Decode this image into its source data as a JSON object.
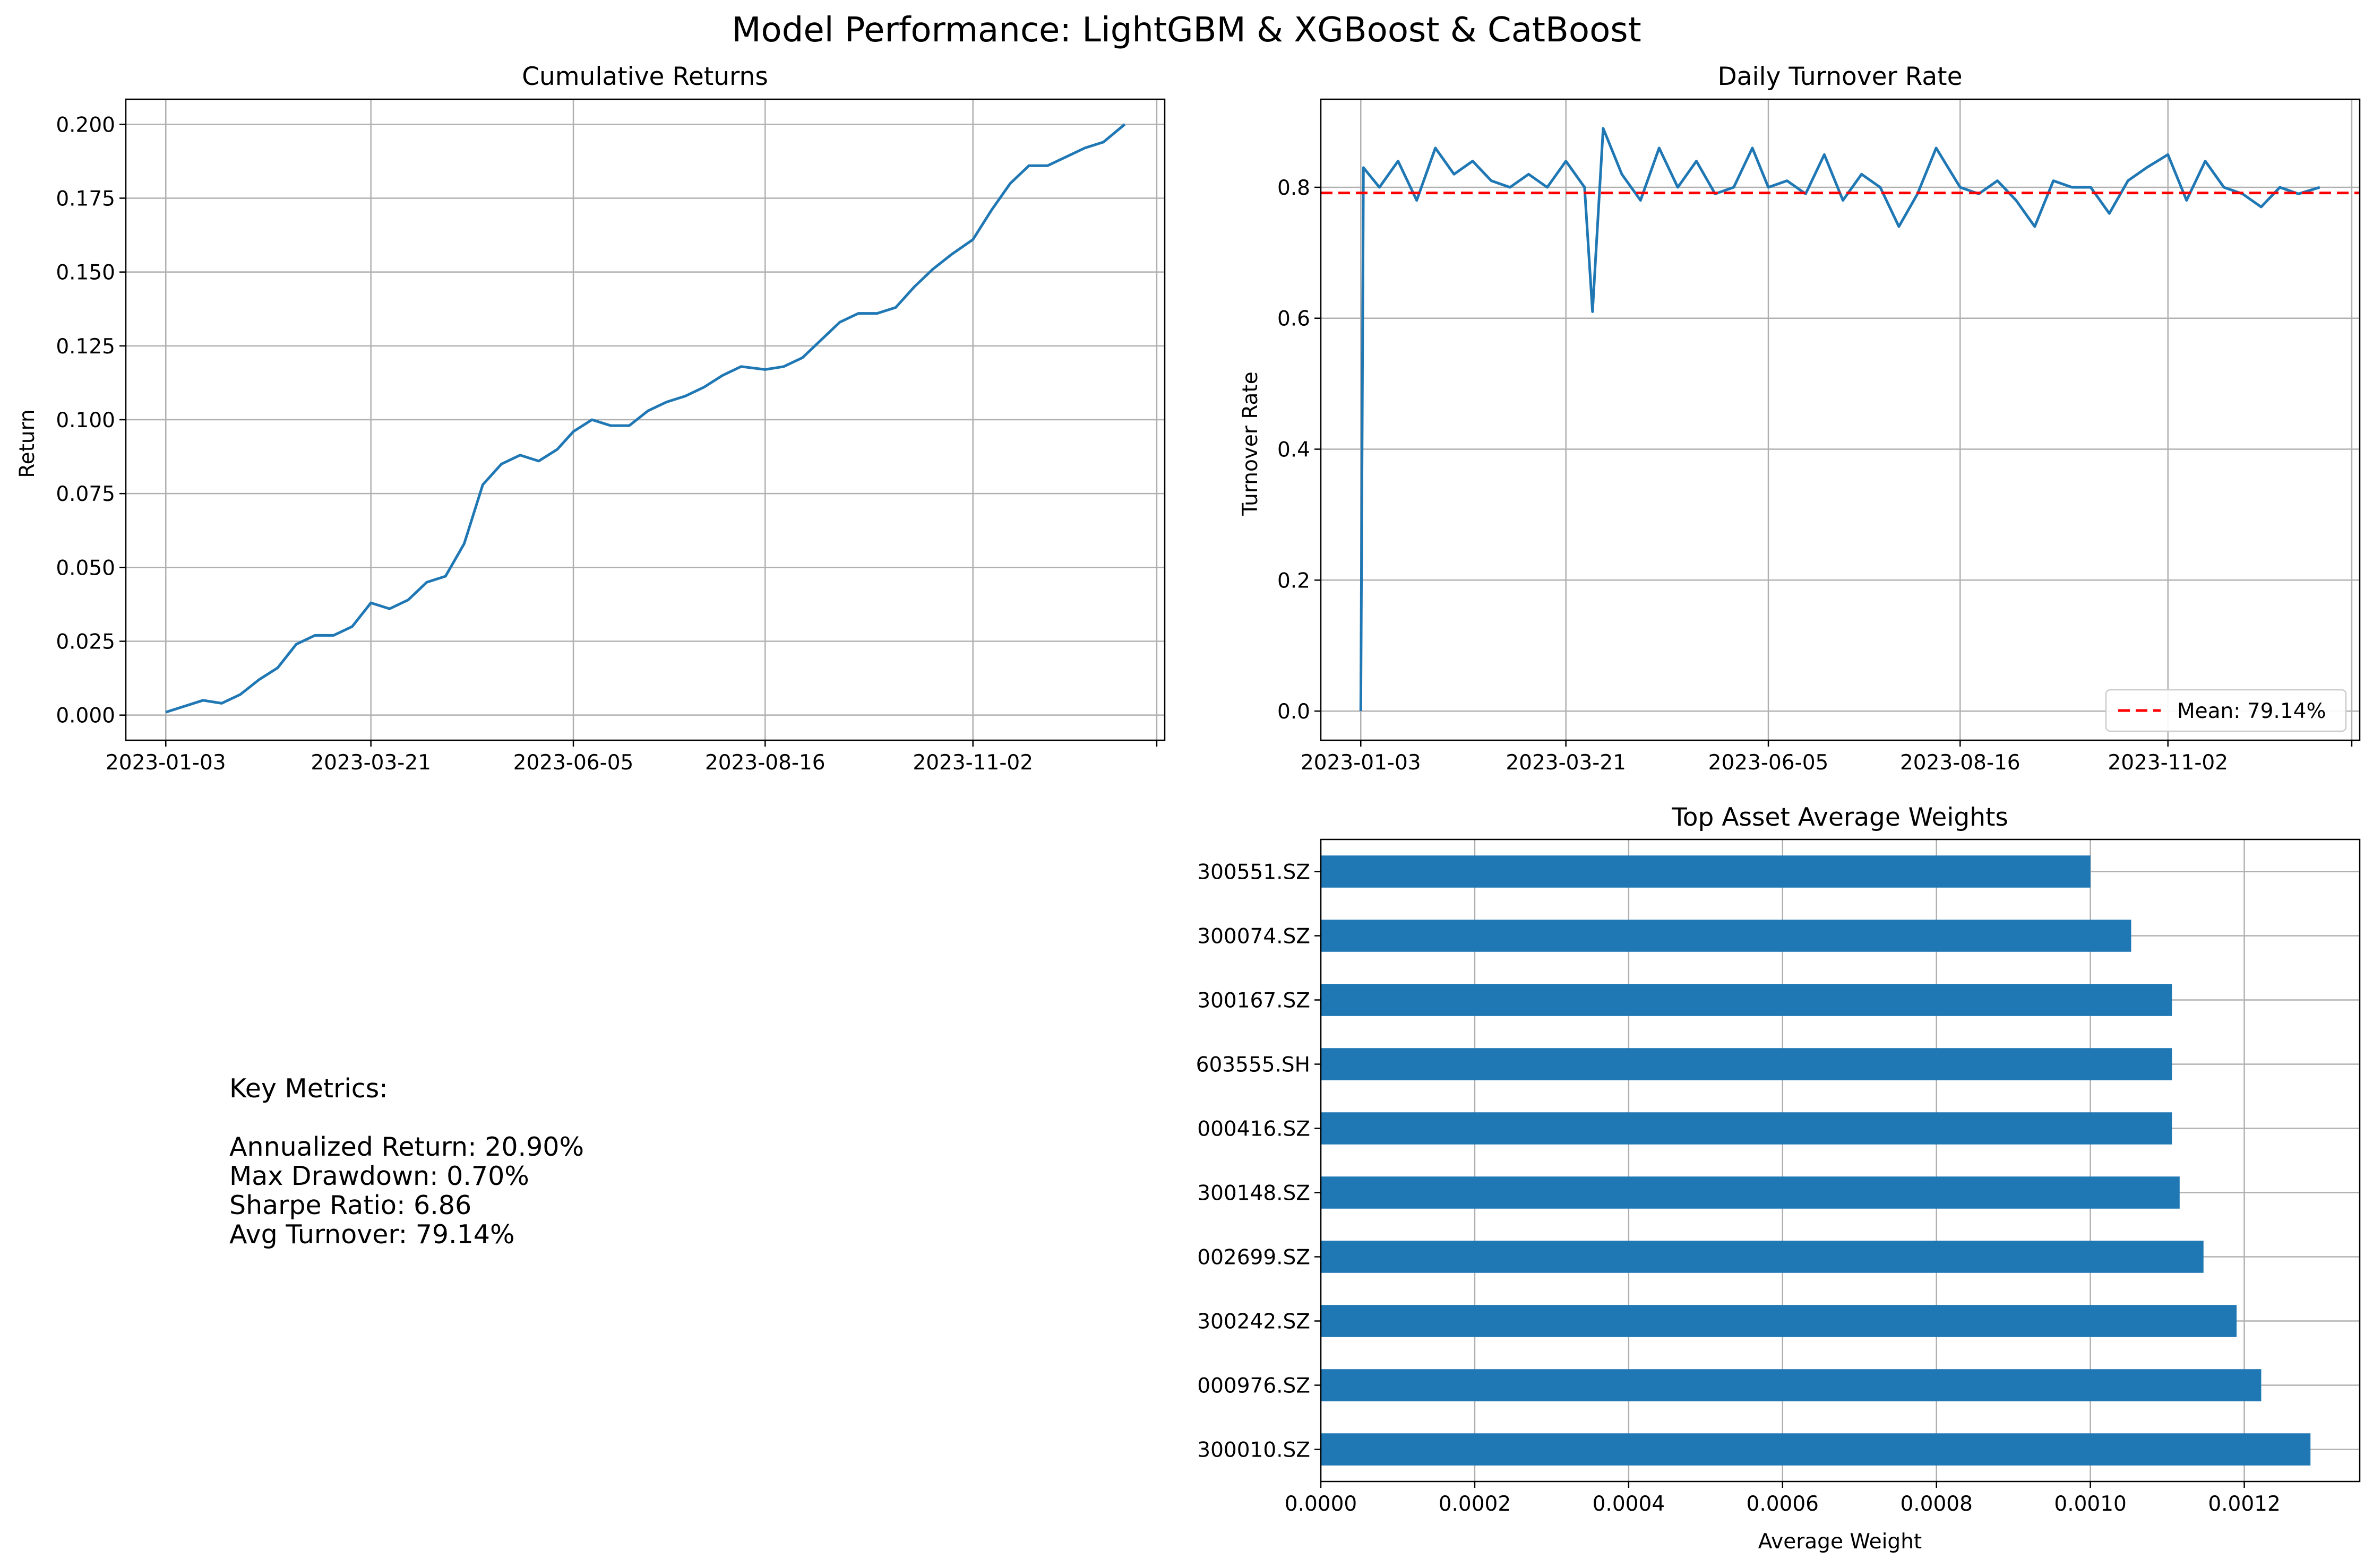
{
  "figure": {
    "suptitle": "Model Performance: LightGBM & XGBoost & CatBoost"
  },
  "metrics": {
    "heading": "Key Metrics:",
    "lines": [
      "Annualized Return: 20.90%",
      "Max Drawdown: 0.70%",
      "Sharpe Ratio: 6.86",
      "Avg Turnover: 79.14%"
    ]
  },
  "chart_data": [
    {
      "type": "line",
      "title": "Cumulative Returns",
      "xlabel": "",
      "ylabel": "Return",
      "x_tick_labels": [
        "2023-01-03",
        "2023-03-21",
        "2023-06-05",
        "2023-08-16",
        "2023-11-02"
      ],
      "y_ticks": [
        0.0,
        0.025,
        0.05,
        0.075,
        0.1,
        0.125,
        0.15,
        0.175,
        0.2
      ],
      "y_tick_labels": [
        "0.000",
        "0.025",
        "0.050",
        "0.075",
        "0.100",
        "0.125",
        "0.150",
        "0.175",
        "0.200"
      ],
      "ylim": [
        -0.0085,
        0.2085
      ],
      "xlim": [
        "2022-12-19",
        "2024-01-13"
      ],
      "grid": true,
      "color": "#1f77b4",
      "series": [
        {
          "x": [
            "2023-01-03",
            "2023-01-10",
            "2023-01-17",
            "2023-01-24",
            "2023-01-31",
            "2023-02-07",
            "2023-02-14",
            "2023-02-21",
            "2023-02-28",
            "2023-03-07",
            "2023-03-14",
            "2023-03-21",
            "2023-03-28",
            "2023-04-04",
            "2023-04-11",
            "2023-04-18",
            "2023-04-25",
            "2023-05-02",
            "2023-05-09",
            "2023-05-16",
            "2023-05-23",
            "2023-05-30",
            "2023-06-05",
            "2023-06-12",
            "2023-06-19",
            "2023-06-26",
            "2023-07-03",
            "2023-07-10",
            "2023-07-17",
            "2023-07-24",
            "2023-07-31",
            "2023-08-07",
            "2023-08-16",
            "2023-08-23",
            "2023-08-30",
            "2023-09-06",
            "2023-09-13",
            "2023-09-20",
            "2023-09-27",
            "2023-10-04",
            "2023-10-11",
            "2023-10-18",
            "2023-10-25",
            "2023-11-02",
            "2023-11-09",
            "2023-11-16",
            "2023-11-23",
            "2023-11-30",
            "2023-12-07",
            "2023-12-14",
            "2023-12-21",
            "2023-12-29"
          ],
          "y": [
            0.001,
            0.003,
            0.005,
            0.004,
            0.007,
            0.012,
            0.016,
            0.024,
            0.027,
            0.027,
            0.03,
            0.038,
            0.036,
            0.039,
            0.045,
            0.047,
            0.058,
            0.078,
            0.085,
            0.088,
            0.086,
            0.09,
            0.096,
            0.1,
            0.098,
            0.098,
            0.103,
            0.106,
            0.108,
            0.111,
            0.115,
            0.118,
            0.117,
            0.118,
            0.121,
            0.127,
            0.133,
            0.136,
            0.136,
            0.138,
            0.145,
            0.151,
            0.156,
            0.161,
            0.171,
            0.18,
            0.186,
            0.186,
            0.189,
            0.192,
            0.194,
            0.2
          ]
        }
      ]
    },
    {
      "type": "line",
      "title": "Daily Turnover Rate",
      "xlabel": "",
      "ylabel": "Turnover Rate",
      "x_tick_labels": [
        "2023-01-03",
        "2023-03-21",
        "2023-06-05",
        "2023-08-16",
        "2023-11-02"
      ],
      "y_ticks": [
        0.0,
        0.2,
        0.4,
        0.6,
        0.8
      ],
      "y_tick_labels": [
        "0.0",
        "0.2",
        "0.4",
        "0.6",
        "0.8"
      ],
      "ylim": [
        -0.0445,
        0.9345
      ],
      "xlim": [
        "2022-12-19",
        "2024-01-13"
      ],
      "grid": true,
      "color": "#1f77b4",
      "mean_line": {
        "value": 0.7914,
        "label": "Mean: 79.14%",
        "color": "#ff0000",
        "style": "dashed"
      },
      "legend": "lower-right",
      "series": [
        {
          "x": [
            "2023-01-03",
            "2023-01-04",
            "2023-01-10",
            "2023-01-17",
            "2023-01-24",
            "2023-01-31",
            "2023-02-07",
            "2023-02-14",
            "2023-02-21",
            "2023-02-28",
            "2023-03-07",
            "2023-03-14",
            "2023-03-21",
            "2023-03-28",
            "2023-03-31",
            "2023-04-04",
            "2023-04-11",
            "2023-04-18",
            "2023-04-25",
            "2023-05-02",
            "2023-05-09",
            "2023-05-16",
            "2023-05-23",
            "2023-05-30",
            "2023-06-05",
            "2023-06-12",
            "2023-06-19",
            "2023-06-26",
            "2023-07-03",
            "2023-07-10",
            "2023-07-17",
            "2023-07-24",
            "2023-07-31",
            "2023-08-07",
            "2023-08-16",
            "2023-08-23",
            "2023-08-30",
            "2023-09-06",
            "2023-09-13",
            "2023-09-20",
            "2023-09-27",
            "2023-10-04",
            "2023-10-11",
            "2023-10-18",
            "2023-10-25",
            "2023-11-02",
            "2023-11-09",
            "2023-11-16",
            "2023-11-23",
            "2023-11-30",
            "2023-12-07",
            "2023-12-14",
            "2023-12-21",
            "2023-12-29"
          ],
          "y": [
            0.0,
            0.83,
            0.8,
            0.84,
            0.78,
            0.86,
            0.82,
            0.84,
            0.81,
            0.8,
            0.82,
            0.8,
            0.84,
            0.8,
            0.61,
            0.89,
            0.82,
            0.78,
            0.86,
            0.8,
            0.84,
            0.79,
            0.8,
            0.86,
            0.8,
            0.81,
            0.79,
            0.85,
            0.78,
            0.82,
            0.8,
            0.74,
            0.79,
            0.86,
            0.8,
            0.79,
            0.81,
            0.78,
            0.74,
            0.81,
            0.8,
            0.8,
            0.76,
            0.81,
            0.83,
            0.85,
            0.78,
            0.84,
            0.8,
            0.79,
            0.77,
            0.8,
            0.79,
            0.8
          ]
        }
      ]
    },
    {
      "type": "bar",
      "orientation": "horizontal",
      "title": "Top Asset Average Weights",
      "xlabel": "Average Weight",
      "ylabel": "",
      "categories": [
        "300010.SZ",
        "000976.SZ",
        "300242.SZ",
        "002699.SZ",
        "300148.SZ",
        "000416.SZ",
        "603555.SH",
        "300167.SZ",
        "300074.SZ",
        "300551.SZ"
      ],
      "values": [
        0.001286,
        0.001222,
        0.00119,
        0.001147,
        0.001116,
        0.001106,
        0.001106,
        0.001106,
        0.001053,
        0.001
      ],
      "x_ticks": [
        0.0,
        0.0002,
        0.0004,
        0.0006,
        0.0008,
        0.001,
        0.0012
      ],
      "x_tick_labels": [
        "0.0000",
        "0.0002",
        "0.0004",
        "0.0006",
        "0.0008",
        "0.0010",
        "0.0012"
      ],
      "xlim": [
        0.0,
        0.00135
      ],
      "grid": true,
      "color": "#1f77b4"
    }
  ]
}
